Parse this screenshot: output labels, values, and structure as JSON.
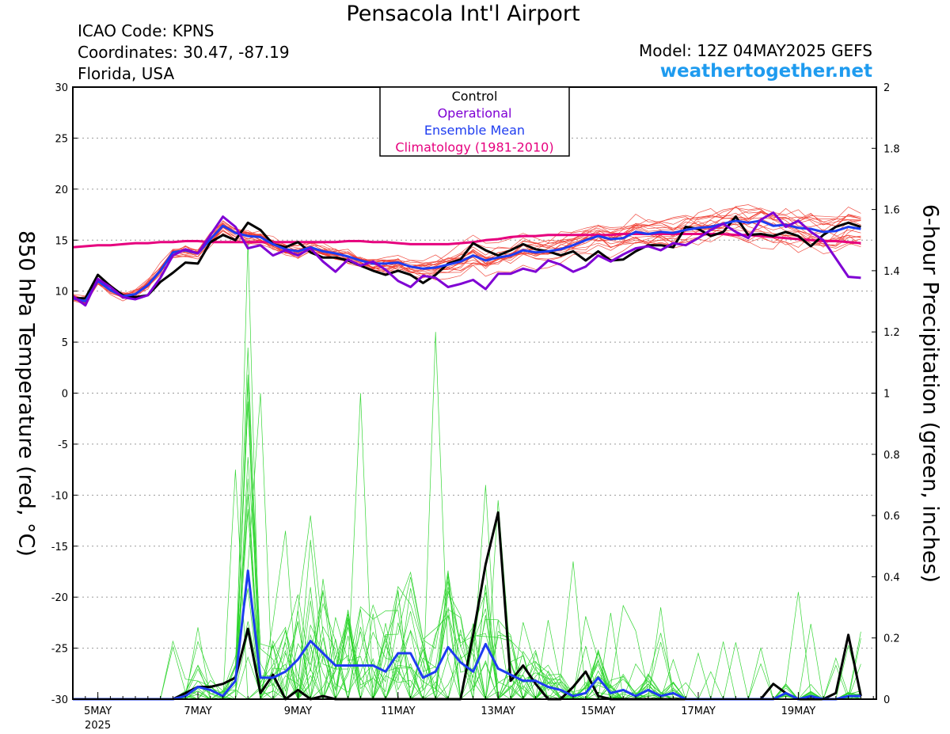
{
  "header": {
    "title": "Pensacola Int'l Airport",
    "icao": "ICAO Code: KPNS",
    "coordinates": "Coordinates: 30.47, -87.19",
    "region": "Florida, USA",
    "model": "Model: 12Z 04MAY2025 GEFS",
    "site": "weathertogether.net"
  },
  "chart_data": {
    "type": "line",
    "title": "Pensacola Int'l Airport",
    "ylabel": "850 hPa Temperature (red, °C)",
    "y2label": "6-hour Precipitation (green, inches)",
    "ylim": [
      -30,
      30
    ],
    "y2lim": [
      0,
      2
    ],
    "y_ticks": [
      "30",
      "25",
      "20",
      "15",
      "10",
      "5",
      "0",
      "-5",
      "-10",
      "-15",
      "-20",
      "-25",
      "-30"
    ],
    "y2_ticks": [
      "2",
      "1.8",
      "1.6",
      "1.4",
      "1.2",
      "1",
      "0.8",
      "0.6",
      "0.4",
      "0.2",
      "0"
    ],
    "x_ticks": [
      "5MAY",
      "7MAY",
      "9MAY",
      "11MAY",
      "13MAY",
      "15MAY",
      "17MAY",
      "19MAY"
    ],
    "x_year": "2025",
    "x_unit": "6-hour steps from 12Z 04MAY2025",
    "x_range": [
      0,
      64
    ],
    "grid": true,
    "legend_position": "top-center",
    "legend": [
      {
        "label": "Control",
        "color": "#000000"
      },
      {
        "label": "Operational",
        "color": "#7f00d4"
      },
      {
        "label": "Ensemble Mean",
        "color": "#1e3cf0"
      },
      {
        "label": "Climatology (1981-2010)",
        "color": "#e6007e"
      }
    ],
    "temperature_series": [
      {
        "name": "Control",
        "color": "#000000",
        "values": [
          9.3,
          9.3,
          11.6,
          10.5,
          9.6,
          9.4,
          9.6,
          10.9,
          11.8,
          12.8,
          12.7,
          14.8,
          15.5,
          15.0,
          16.7,
          16.0,
          14.6,
          14.3,
          14.8,
          13.8,
          13.3,
          13.3,
          13.0,
          12.5,
          12.0,
          11.6,
          12.0,
          11.6,
          10.8,
          11.6,
          12.7,
          13.1,
          14.7,
          14.0,
          13.5,
          14.0,
          14.6,
          14.1,
          13.9,
          13.5,
          13.9,
          13.0,
          13.9,
          13.0,
          13.1,
          13.9,
          14.5,
          14.5,
          14.3,
          16.3,
          16.1,
          15.4,
          15.8,
          17.3,
          15.5,
          15.6,
          15.4,
          15.8,
          15.4,
          14.4,
          15.5,
          16.3,
          16.7,
          16.3
        ]
      },
      {
        "name": "Operational",
        "color": "#7f00d4",
        "values": [
          9.5,
          8.6,
          11.2,
          10.4,
          9.4,
          9.2,
          9.6,
          11.3,
          13.5,
          14.1,
          13.7,
          15.5,
          17.3,
          16.3,
          14.2,
          14.5,
          13.5,
          14.0,
          13.5,
          14.2,
          12.9,
          11.9,
          13.1,
          12.5,
          12.9,
          12.1,
          11.0,
          10.4,
          11.5,
          11.3,
          10.4,
          10.7,
          11.1,
          10.2,
          11.7,
          11.7,
          12.2,
          11.9,
          13.0,
          12.6,
          11.9,
          12.4,
          13.5,
          12.9,
          13.6,
          14.2,
          14.4,
          14.0,
          14.7,
          14.5,
          15.2,
          16.0,
          16.6,
          15.8,
          15.2,
          17.0,
          17.7,
          16.3,
          16.9,
          15.8,
          15.0,
          13.2,
          11.4,
          11.3
        ]
      },
      {
        "name": "Ensemble Mean",
        "color": "#1e3cf0",
        "values": [
          9.3,
          9.0,
          11.0,
          10.1,
          9.5,
          9.7,
          10.6,
          12.0,
          13.8,
          14.0,
          13.7,
          15.1,
          16.4,
          15.7,
          15.4,
          15.3,
          14.6,
          14.1,
          13.9,
          14.3,
          13.9,
          13.7,
          13.4,
          13.0,
          12.7,
          12.7,
          12.8,
          12.4,
          12.2,
          12.3,
          12.6,
          12.9,
          13.5,
          13.0,
          13.3,
          13.5,
          14.0,
          13.8,
          13.9,
          14.1,
          14.5,
          15.0,
          15.4,
          15.1,
          15.2,
          15.8,
          15.6,
          15.8,
          15.7,
          16.0,
          16.2,
          16.3,
          16.6,
          16.9,
          16.7,
          16.9,
          16.4,
          16.5,
          16.2,
          16.1,
          15.8,
          15.9,
          16.3,
          16.1
        ]
      },
      {
        "name": "Climatology (1981-2010)",
        "color": "#e6007e",
        "values": [
          14.3,
          14.4,
          14.5,
          14.5,
          14.6,
          14.7,
          14.7,
          14.8,
          14.8,
          14.9,
          14.9,
          14.8,
          14.8,
          14.8,
          14.8,
          14.8,
          14.8,
          14.8,
          14.8,
          14.8,
          14.8,
          14.8,
          14.9,
          14.9,
          14.8,
          14.8,
          14.7,
          14.6,
          14.6,
          14.6,
          14.6,
          14.7,
          14.8,
          15.0,
          15.1,
          15.3,
          15.4,
          15.4,
          15.5,
          15.5,
          15.5,
          15.5,
          15.5,
          15.5,
          15.6,
          15.6,
          15.6,
          15.6,
          15.6,
          15.6,
          15.6,
          15.6,
          15.6,
          15.5,
          15.5,
          15.4,
          15.3,
          15.2,
          15.1,
          15.0,
          14.9,
          14.9,
          14.8,
          14.7
        ]
      }
    ],
    "precip_series": [
      {
        "name": "Control",
        "color": "#000000",
        "values": [
          0,
          0,
          0,
          0,
          0,
          0,
          0,
          0,
          0,
          0.02,
          0.04,
          0.04,
          0.05,
          0.07,
          0.23,
          0.02,
          0.08,
          0,
          0.03,
          0,
          0.01,
          0,
          0,
          0,
          0,
          0,
          0,
          0,
          0,
          0,
          0,
          0,
          0.21,
          0.44,
          0.61,
          0.06,
          0.11,
          0.05,
          0,
          0,
          0.04,
          0.09,
          0.01,
          0,
          0,
          0,
          0,
          0,
          0,
          0,
          0,
          0,
          0,
          0,
          0,
          0,
          0.05,
          0.02,
          0,
          0,
          0,
          0.02,
          0.21,
          0.01
        ]
      },
      {
        "name": "Ensemble Mean",
        "color": "#1e3cf0",
        "values": [
          0,
          0,
          0,
          0,
          0,
          0,
          0,
          0,
          0,
          0.01,
          0.04,
          0.03,
          0.01,
          0.06,
          0.42,
          0.07,
          0.07,
          0.09,
          0.13,
          0.19,
          0.15,
          0.11,
          0.11,
          0.11,
          0.11,
          0.09,
          0.15,
          0.15,
          0.07,
          0.09,
          0.17,
          0.12,
          0.09,
          0.18,
          0.1,
          0.08,
          0.06,
          0.06,
          0.04,
          0.03,
          0.01,
          0.02,
          0.07,
          0.02,
          0.03,
          0.01,
          0.03,
          0.01,
          0.02,
          0,
          0,
          0,
          0,
          0,
          0,
          0,
          0,
          0.02,
          0,
          0.01,
          0,
          0,
          0.01,
          0.01
        ]
      }
    ],
    "ensemble_members": {
      "temperature_count": 20,
      "precip_count": 20,
      "temperature_color": "#f03a2e",
      "precip_color": "#2bd42b"
    }
  }
}
